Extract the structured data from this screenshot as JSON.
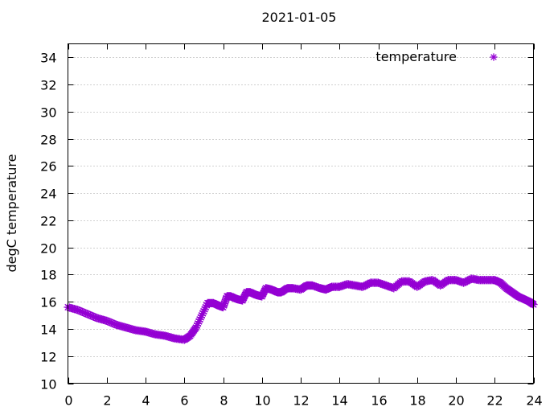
{
  "chart_data": {
    "type": "scatter",
    "title": "2021-01-05",
    "xlabel": "",
    "ylabel": "degC temperature",
    "xlim": [
      0,
      24
    ],
    "ylim": [
      10,
      35
    ],
    "xticks": [
      0,
      2,
      4,
      6,
      8,
      10,
      12,
      14,
      16,
      18,
      20,
      22,
      24
    ],
    "yticks": [
      10,
      12,
      14,
      16,
      18,
      20,
      22,
      24,
      26,
      28,
      30,
      32,
      34
    ],
    "grid": true,
    "legend_position": "top-right",
    "marker": "star",
    "series": [
      {
        "name": "temperature",
        "color": "#9400d3",
        "x": [
          0.0,
          0.5,
          1.0,
          1.5,
          2.0,
          2.5,
          3.0,
          3.5,
          4.0,
          4.5,
          5.0,
          5.5,
          6.0,
          6.3,
          6.6,
          6.9,
          7.2,
          7.5,
          7.8,
          8.0,
          8.2,
          8.4,
          8.7,
          9.0,
          9.2,
          9.4,
          9.7,
          10.0,
          10.2,
          10.5,
          10.8,
          11.0,
          11.3,
          11.6,
          12.0,
          12.3,
          12.6,
          13.0,
          13.3,
          13.6,
          14.0,
          14.4,
          14.8,
          15.2,
          15.6,
          16.0,
          16.4,
          16.8,
          17.2,
          17.6,
          18.0,
          18.4,
          18.8,
          19.2,
          19.6,
          20.0,
          20.4,
          20.8,
          21.2,
          21.6,
          22.0,
          22.3,
          22.6,
          22.9,
          23.2,
          23.5,
          23.8,
          24.0
        ],
        "values": [
          15.6,
          15.4,
          15.1,
          14.8,
          14.6,
          14.3,
          14.1,
          13.9,
          13.8,
          13.6,
          13.5,
          13.3,
          13.2,
          13.5,
          14.1,
          15.0,
          15.9,
          15.9,
          15.7,
          15.6,
          16.4,
          16.4,
          16.2,
          16.1,
          16.7,
          16.7,
          16.5,
          16.4,
          17.0,
          16.9,
          16.7,
          16.7,
          17.0,
          17.0,
          16.9,
          17.2,
          17.2,
          17.0,
          16.9,
          17.1,
          17.1,
          17.3,
          17.2,
          17.1,
          17.4,
          17.4,
          17.2,
          17.0,
          17.5,
          17.5,
          17.1,
          17.5,
          17.6,
          17.2,
          17.6,
          17.6,
          17.4,
          17.7,
          17.6,
          17.6,
          17.6,
          17.4,
          17.0,
          16.7,
          16.4,
          16.2,
          16.0,
          15.8
        ]
      }
    ]
  }
}
